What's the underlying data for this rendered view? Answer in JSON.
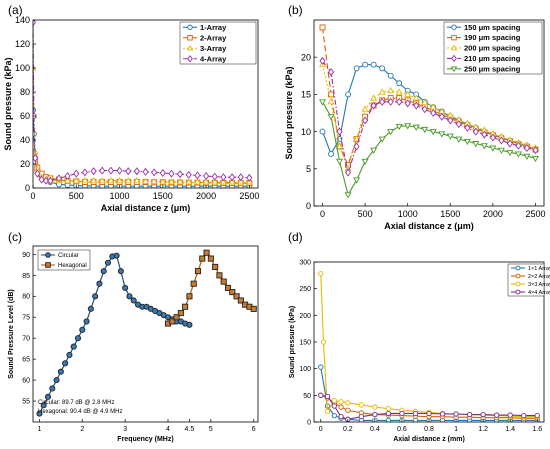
{
  "chart_data": [
    {
      "panel_label": "(a)",
      "type": "line",
      "xlabel": "Axial distance z (μm)",
      "ylabel": "Sound pressure (kPa)",
      "xlim": [
        0,
        2600
      ],
      "ylim": [
        0,
        140
      ],
      "xticks": [
        0,
        500,
        1000,
        1500,
        2000,
        2500
      ],
      "yticks": [
        0,
        20,
        40,
        60,
        80,
        100,
        120,
        140
      ],
      "grid": false,
      "legend": "top-right",
      "colors": [
        "#1f77b4",
        "#d95f02",
        "#e6b800",
        "#9b30b0"
      ],
      "markers": [
        "circle",
        "square",
        "triangle",
        "diamond"
      ],
      "series": [
        {
          "name": "1-Array",
          "x": [
            0,
            10,
            25,
            50,
            100,
            150,
            200,
            300,
            400,
            500,
            600,
            700,
            800,
            900,
            1000,
            1100,
            1200,
            1300,
            1400,
            1500,
            1600,
            1700,
            1800,
            1900,
            2000,
            2100,
            2200,
            2300,
            2400,
            2500
          ],
          "y": [
            65,
            45,
            25,
            15,
            9,
            7,
            5,
            3,
            2.5,
            2,
            1.8,
            1.6,
            1.5,
            1.5,
            1.5,
            1.5,
            1.5,
            1.5,
            1.5,
            1.5,
            1.5,
            1.5,
            1.5,
            1.5,
            1.5,
            1.5,
            1.5,
            1.5,
            1.5,
            1.5
          ]
        },
        {
          "name": "2-Array",
          "x": [
            0,
            10,
            25,
            50,
            100,
            150,
            200,
            300,
            400,
            500,
            600,
            700,
            800,
            900,
            1000,
            1100,
            1200,
            1300,
            1400,
            1500,
            1600,
            1700,
            1800,
            1900,
            2000,
            2100,
            2200,
            2300,
            2400,
            2500
          ],
          "y": [
            30,
            26,
            22,
            17,
            12,
            9,
            8,
            7,
            6,
            5.5,
            5,
            5,
            5,
            5,
            5,
            5,
            5,
            5,
            4.8,
            4.8,
            4.6,
            4.6,
            4.5,
            4.5,
            4.4,
            4.3,
            4.2,
            4.1,
            4,
            4
          ]
        },
        {
          "name": "3-Array",
          "x": [
            0,
            10,
            25,
            50,
            100,
            150,
            200,
            300,
            400,
            500,
            600,
            700,
            800,
            900,
            1000,
            1100,
            1200,
            1300,
            1400,
            1500,
            1600,
            1700,
            1800,
            1900,
            2000,
            2100,
            2200,
            2300,
            2400,
            2500
          ],
          "y": [
            100,
            60,
            30,
            15,
            9,
            7,
            6,
            6,
            6,
            6,
            6,
            6,
            6,
            6,
            6,
            6,
            6,
            5.5,
            5.5,
            5,
            5,
            5,
            5,
            5,
            5,
            5,
            5,
            5,
            5,
            5
          ]
        },
        {
          "name": "4-Array",
          "x": [
            0,
            10,
            25,
            50,
            100,
            150,
            200,
            300,
            400,
            500,
            600,
            700,
            800,
            900,
            1000,
            1100,
            1200,
            1300,
            1400,
            1500,
            1600,
            1700,
            1800,
            1900,
            2000,
            2100,
            2200,
            2300,
            2400,
            2500
          ],
          "y": [
            138,
            60,
            25,
            12,
            7,
            6,
            6,
            8,
            10,
            12,
            13,
            14,
            14.5,
            14.5,
            14.5,
            14,
            14,
            13.5,
            13,
            12.5,
            12,
            11.5,
            11,
            10.5,
            10,
            9.5,
            9,
            9,
            9,
            8.5
          ]
        }
      ]
    },
    {
      "panel_label": "(b)",
      "type": "line",
      "xlabel": "Axial distance z (μm)",
      "ylabel": "Sound pressure (kPa)",
      "xlim": [
        -100,
        2600
      ],
      "ylim": [
        0,
        25
      ],
      "xticks": [
        0,
        500,
        1000,
        1500,
        2000,
        2500
      ],
      "yticks": [
        0,
        5,
        10,
        15,
        20
      ],
      "grid": false,
      "legend": "top-right",
      "colors": [
        "#1f77b4",
        "#d95f02",
        "#e6b800",
        "#9b30b0",
        "#4a9a2a"
      ],
      "markers": [
        "circle",
        "square",
        "triangle",
        "diamond",
        "triangle-down"
      ],
      "series": [
        {
          "name": "150 μm spacing",
          "x": [
            0,
            100,
            200,
            300,
            400,
            500,
            600,
            700,
            800,
            900,
            1000,
            1100,
            1200,
            1300,
            1400,
            1500,
            1600,
            1700,
            1800,
            1900,
            2000,
            2100,
            2200,
            2300,
            2400,
            2500
          ],
          "y": [
            10,
            7,
            9,
            15,
            18.5,
            19,
            19,
            18.5,
            17.5,
            16.5,
            15.5,
            15,
            14,
            13.3,
            12.7,
            12,
            11.5,
            11,
            10.5,
            10,
            9.6,
            9.2,
            8.8,
            8.4,
            8,
            7.6
          ]
        },
        {
          "name": "190 μm spacing",
          "x": [
            0,
            100,
            200,
            300,
            400,
            500,
            600,
            700,
            800,
            900,
            1000,
            1100,
            1200,
            1300,
            1400,
            1500,
            1600,
            1700,
            1800,
            1900,
            2000,
            2100,
            2200,
            2300,
            2400,
            2500
          ],
          "y": [
            24,
            15,
            8,
            5.5,
            9,
            12,
            13.5,
            14.2,
            14.5,
            14.5,
            14.2,
            13.8,
            13.3,
            12.8,
            12.3,
            11.8,
            11.3,
            10.8,
            10.3,
            9.9,
            9.5,
            9.1,
            8.7,
            8.3,
            8,
            7.6
          ]
        },
        {
          "name": "200 μm spacing",
          "x": [
            0,
            100,
            200,
            300,
            400,
            500,
            600,
            700,
            800,
            900,
            1000,
            1100,
            1200,
            1300,
            1400,
            1500,
            1600,
            1700,
            1800,
            1900,
            2000,
            2100,
            2200,
            2300,
            2400,
            2500
          ],
          "y": [
            19,
            14,
            8,
            5,
            9,
            13,
            14.5,
            15.3,
            15.5,
            15.3,
            15,
            14.5,
            13.9,
            13.3,
            12.7,
            12.2,
            11.6,
            11.1,
            10.6,
            10.2,
            9.7,
            9.3,
            8.9,
            8.5,
            8.2,
            7.8
          ]
        },
        {
          "name": "210 μm spacing",
          "x": [
            0,
            100,
            200,
            300,
            400,
            500,
            600,
            700,
            800,
            900,
            1000,
            1100,
            1200,
            1300,
            1400,
            1500,
            1600,
            1700,
            1800,
            1900,
            2000,
            2100,
            2200,
            2300,
            2400,
            2500
          ],
          "y": [
            19.5,
            18,
            10,
            4.5,
            8,
            11.5,
            13.5,
            14,
            14,
            14,
            13.8,
            13.5,
            13,
            12.5,
            12,
            11.5,
            11,
            10.5,
            10,
            9.6,
            9.2,
            8.8,
            8.4,
            8.1,
            7.8,
            7.5
          ]
        },
        {
          "name": "250 μm spacing",
          "x": [
            0,
            100,
            200,
            300,
            400,
            500,
            600,
            700,
            800,
            900,
            1000,
            1100,
            1200,
            1300,
            1400,
            1500,
            1600,
            1700,
            1800,
            1900,
            2000,
            2100,
            2200,
            2300,
            2400,
            2500
          ],
          "y": [
            14,
            12,
            6,
            1.5,
            3.5,
            6,
            7.5,
            9,
            10,
            10.7,
            10.8,
            10.6,
            10.3,
            10,
            9.7,
            9.4,
            9,
            8.7,
            8.4,
            8.1,
            7.8,
            7.5,
            7.2,
            7,
            6.7,
            6.4
          ]
        }
      ]
    },
    {
      "panel_label": "(c)",
      "type": "line",
      "xlabel": "Frequency (MHz)",
      "ylabel": "Sound Pressure Level (dB)",
      "xlim": [
        0.85,
        6.1
      ],
      "ylim": [
        50,
        92
      ],
      "xticks": [
        1,
        2,
        3,
        4,
        4.5,
        5,
        6
      ],
      "yticks": [
        55,
        60,
        65,
        70,
        75,
        80,
        85,
        90
      ],
      "grid": false,
      "legend": "top-left",
      "colors": [
        "#1f4e79",
        "#b05a10"
      ],
      "markers": [
        "circle",
        "square"
      ],
      "annotations": [
        "Circular: 89.7 dB @ 2.8 MHz",
        "Hexagonal: 90.4 dB @ 4.9 MHz"
      ],
      "series": [
        {
          "name": "Circular",
          "x": [
            1.0,
            1.1,
            1.2,
            1.3,
            1.4,
            1.5,
            1.6,
            1.7,
            1.8,
            1.9,
            2.0,
            2.1,
            2.2,
            2.3,
            2.4,
            2.5,
            2.6,
            2.7,
            2.8,
            2.9,
            3.0,
            3.1,
            3.2,
            3.3,
            3.4,
            3.5,
            3.6,
            3.7,
            3.8,
            3.9,
            4.0,
            4.1,
            4.2,
            4.3,
            4.4,
            4.5
          ],
          "y": [
            52,
            54,
            56,
            58,
            60,
            62,
            64,
            66,
            68,
            70,
            72,
            74,
            77,
            80,
            83,
            86,
            88,
            89.5,
            89.7,
            86,
            82,
            80,
            79,
            78,
            77.5,
            77.5,
            77,
            76.5,
            76,
            75.5,
            75,
            74.5,
            74,
            74,
            73.5,
            73.2
          ]
        },
        {
          "name": "Hexagonal",
          "x": [
            4.0,
            4.1,
            4.2,
            4.3,
            4.4,
            4.5,
            4.6,
            4.7,
            4.8,
            4.9,
            5.0,
            5.1,
            5.2,
            5.3,
            5.4,
            5.5,
            5.6,
            5.7,
            5.8,
            5.9,
            6.0
          ],
          "y": [
            73.5,
            74,
            75,
            76,
            77.5,
            80,
            83,
            86,
            89,
            90.4,
            89,
            87,
            85,
            83.5,
            82,
            81,
            80,
            79,
            78,
            77.5,
            77
          ]
        }
      ]
    },
    {
      "panel_label": "(d)",
      "type": "line",
      "xlabel": "Axial distance z (mm)",
      "ylabel": "Sound pressure (kPa)",
      "xlim": [
        -0.05,
        1.65
      ],
      "ylim": [
        0,
        300
      ],
      "xticks": [
        0,
        0.2,
        0.4,
        0.6,
        0.8,
        1,
        1.2,
        1.4,
        1.6
      ],
      "yticks": [
        0,
        50,
        100,
        150,
        200,
        250,
        300
      ],
      "grid": false,
      "legend": "top-right",
      "colors": [
        "#1f77b4",
        "#d95f02",
        "#e6b800",
        "#7b2d8e"
      ],
      "markers": [
        "circle",
        "circle",
        "circle",
        "circle"
      ],
      "series": [
        {
          "name": "1×1 Array",
          "x": [
            0,
            0.05,
            0.1,
            0.15,
            0.2,
            0.3,
            0.4,
            0.5,
            0.6,
            0.7,
            0.8,
            0.9,
            1.0,
            1.1,
            1.2,
            1.3,
            1.4,
            1.5,
            1.6
          ],
          "y": [
            103,
            30,
            12,
            7,
            5,
            3,
            3,
            3,
            3,
            3,
            3,
            3,
            3,
            3,
            3,
            3,
            3,
            3,
            3
          ]
        },
        {
          "name": "2×2 Array",
          "x": [
            0,
            0.05,
            0.1,
            0.15,
            0.2,
            0.3,
            0.4,
            0.5,
            0.6,
            0.7,
            0.8,
            0.9,
            1.0,
            1.1,
            1.2,
            1.3,
            1.4,
            1.5,
            1.6
          ],
          "y": [
            50,
            45,
            36,
            28,
            22,
            17,
            14,
            13,
            12,
            11,
            10,
            10,
            9,
            9,
            8,
            8,
            8,
            7,
            7
          ]
        },
        {
          "name": "3×3 Array",
          "x": [
            0,
            0.02,
            0.05,
            0.1,
            0.15,
            0.2,
            0.3,
            0.4,
            0.5,
            0.6,
            0.7,
            0.8,
            0.9,
            1.0,
            1.1,
            1.2,
            1.3,
            1.4,
            1.5,
            1.6
          ],
          "y": [
            278,
            150,
            20,
            40,
            38,
            36,
            32,
            28,
            25,
            22,
            20,
            18,
            16,
            15,
            14,
            13,
            12,
            11,
            10,
            10
          ]
        },
        {
          "name": "4×4 Array",
          "x": [
            0,
            0.05,
            0.1,
            0.15,
            0.2,
            0.3,
            0.4,
            0.5,
            0.6,
            0.7,
            0.8,
            0.9,
            1.0,
            1.1,
            1.2,
            1.3,
            1.4,
            1.5,
            1.6
          ],
          "y": [
            50,
            48,
            30,
            10,
            5,
            10,
            14,
            16,
            16,
            16,
            16,
            15,
            15,
            14,
            14,
            13,
            13,
            12,
            12
          ]
        }
      ]
    }
  ]
}
